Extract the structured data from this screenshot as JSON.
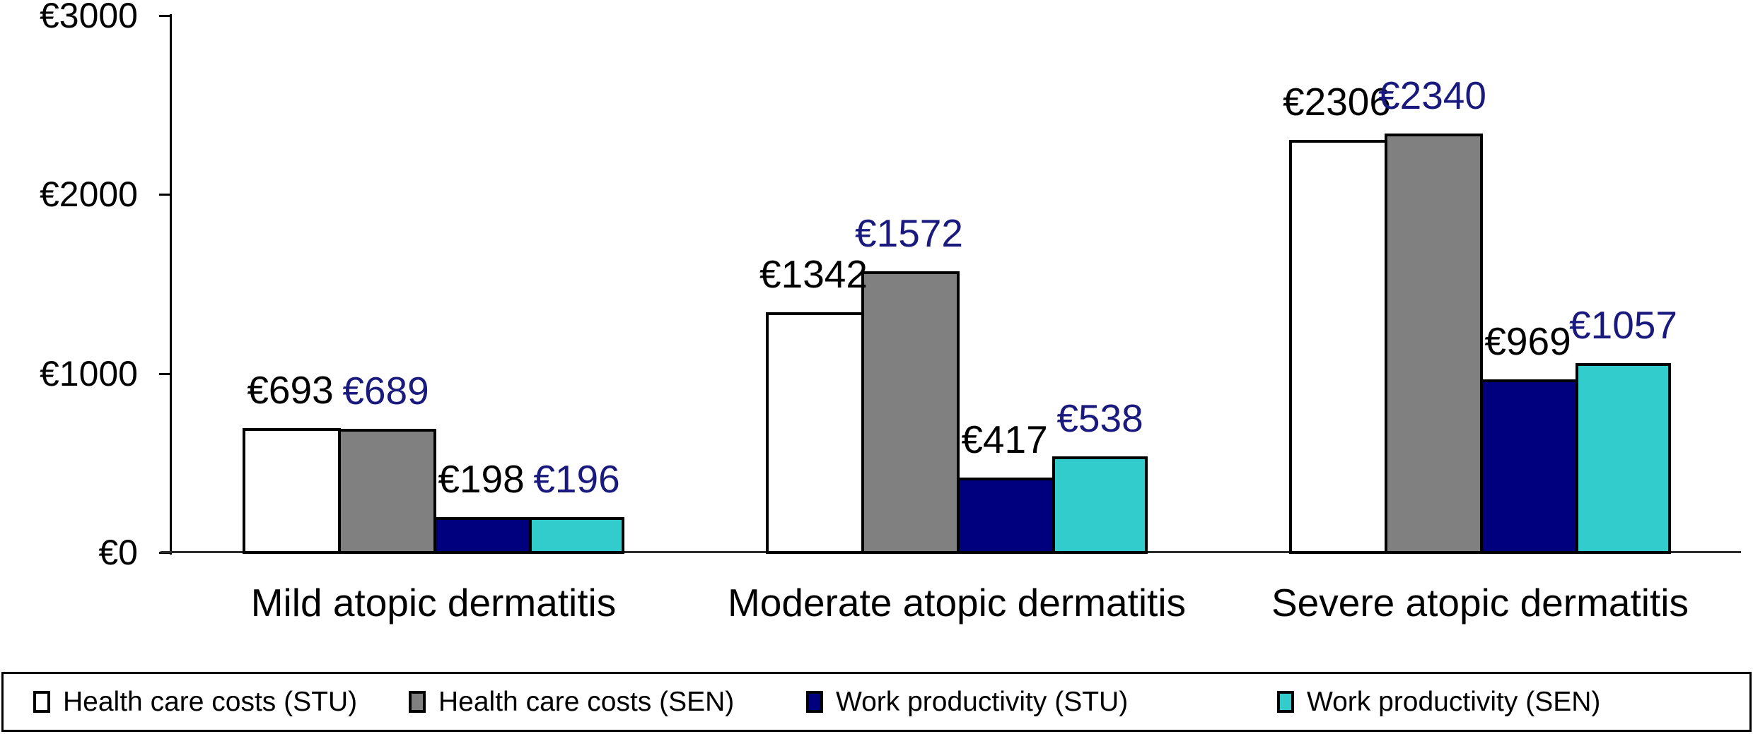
{
  "chart_data": {
    "type": "bar",
    "title": "",
    "categories": [
      "Mild atopic dermatitis",
      "Moderate atopic dermatitis",
      "Severe atopic dermatitis"
    ],
    "series": [
      {
        "name": "Health care costs (STU)",
        "color": "#ffffff",
        "label_color": "#000000",
        "values": [
          693,
          1342,
          2306
        ]
      },
      {
        "name": "Health care costs (SEN)",
        "color": "#808080",
        "label_color": "#1a1a7e",
        "values": [
          689,
          1572,
          2340
        ]
      },
      {
        "name": "Work productivity (STU)",
        "color": "#00007e",
        "label_color": "#000000",
        "values": [
          198,
          417,
          969
        ]
      },
      {
        "name": "Work productivity (SEN)",
        "color": "#33cccc",
        "label_color": "#1a1a7e",
        "values": [
          196,
          538,
          1057
        ]
      }
    ],
    "value_prefix": "€",
    "data_labels": [
      [
        "€693",
        "€1342",
        "€2306"
      ],
      [
        "€689",
        "€1572",
        "€2340"
      ],
      [
        "€198",
        "€417",
        "€969"
      ],
      [
        "€196",
        "€538",
        "€1057"
      ]
    ],
    "y_axis": {
      "min": 0,
      "max": 3000,
      "tick_values": [
        0,
        1000,
        2000,
        3000
      ],
      "tick_labels": [
        "€0",
        "€1000",
        "€2000",
        "€3000"
      ]
    },
    "legend": {
      "position": "bottom",
      "entries": [
        "Health care costs (STU)",
        "Health care costs (SEN)",
        "Work productivity (STU)",
        "Work productivity (SEN)"
      ]
    },
    "grid": false,
    "background": "#ffffff",
    "axis_color": "#000000",
    "bar_border_color": "#000000"
  }
}
